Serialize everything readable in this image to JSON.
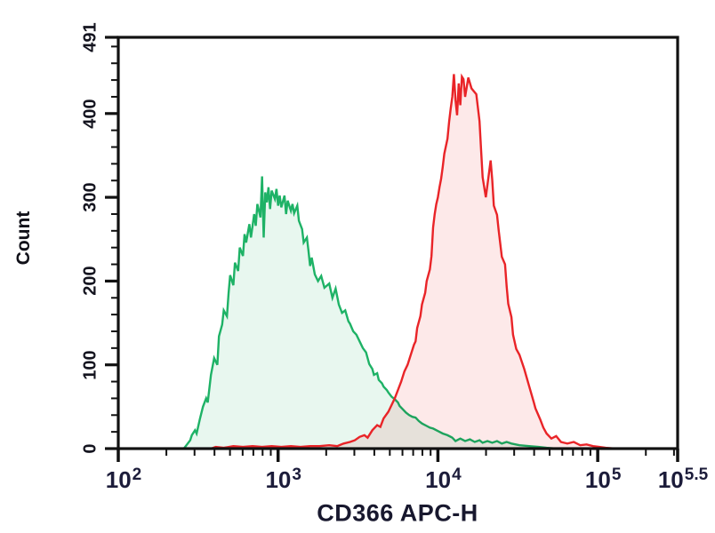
{
  "figure": {
    "kind": "flow-cytometry-histogram-overlay",
    "background": "#ffffff"
  },
  "chart_data": {
    "type": "area",
    "title": "",
    "xlabel": "CD366 APC-H",
    "ylabel": "Count",
    "x_scale": "log10",
    "xlim_log10": [
      2,
      5.5
    ],
    "ylim": [
      0,
      491
    ],
    "grid": false,
    "legend": "none",
    "axis_color": "#111111",
    "tick_label_color": "#1c1c3a",
    "y_major_ticks": [
      {
        "label": "0",
        "value": 0
      },
      {
        "label": "100",
        "value": 100
      },
      {
        "label": "200",
        "value": 200
      },
      {
        "label": "300",
        "value": 300
      },
      {
        "label": "400",
        "value": 400
      },
      {
        "label": "491",
        "value": 491
      }
    ],
    "y_minor_step": 20,
    "x_major_ticks": [
      {
        "base": "10",
        "exp": "2",
        "log10": 2
      },
      {
        "base": "10",
        "exp": "3",
        "log10": 3
      },
      {
        "base": "10",
        "exp": "4",
        "log10": 4
      },
      {
        "base": "10",
        "exp": "5",
        "log10": 5
      },
      {
        "base": "10",
        "exp": "5.5",
        "log10": 5.5
      }
    ],
    "x_minor_ticks_per_decade": [
      2,
      3,
      4,
      5,
      6,
      7,
      8,
      9
    ],
    "series": [
      {
        "name": "green-histogram",
        "stroke": "#1eb266",
        "fill": "rgba(30,178,102,0.10)",
        "peak": {
          "log10x": 2.9,
          "count": 325
        },
        "points": [
          [
            2.41,
            0
          ],
          [
            2.43,
            5
          ],
          [
            2.45,
            10
          ],
          [
            2.46,
            16
          ],
          [
            2.48,
            22
          ],
          [
            2.49,
            18
          ],
          [
            2.51,
            35
          ],
          [
            2.53,
            50
          ],
          [
            2.55,
            60
          ],
          [
            2.56,
            55
          ],
          [
            2.58,
            88
          ],
          [
            2.6,
            108
          ],
          [
            2.62,
            100
          ],
          [
            2.63,
            134
          ],
          [
            2.65,
            148
          ],
          [
            2.66,
            165
          ],
          [
            2.68,
            158
          ],
          [
            2.69,
            185
          ],
          [
            2.7,
            207
          ],
          [
            2.72,
            195
          ],
          [
            2.73,
            222
          ],
          [
            2.75,
            212
          ],
          [
            2.76,
            240
          ],
          [
            2.78,
            230
          ],
          [
            2.79,
            256
          ],
          [
            2.8,
            246
          ],
          [
            2.82,
            268
          ],
          [
            2.83,
            252
          ],
          [
            2.85,
            280
          ],
          [
            2.86,
            266
          ],
          [
            2.87,
            292
          ],
          [
            2.89,
            276
          ],
          [
            2.9,
            325
          ],
          [
            2.91,
            252
          ],
          [
            2.92,
            306
          ],
          [
            2.93,
            294
          ],
          [
            2.94,
            312
          ],
          [
            2.95,
            286
          ],
          [
            2.96,
            308
          ],
          [
            2.98,
            298
          ],
          [
            2.99,
            310
          ],
          [
            3.0,
            290
          ],
          [
            3.01,
            302
          ],
          [
            3.02,
            288
          ],
          [
            3.04,
            302
          ],
          [
            3.05,
            280
          ],
          [
            3.06,
            296
          ],
          [
            3.08,
            284
          ],
          [
            3.09,
            292
          ],
          [
            3.1,
            281
          ],
          [
            3.12,
            290
          ],
          [
            3.13,
            272
          ],
          [
            3.15,
            262
          ],
          [
            3.16,
            246
          ],
          [
            3.18,
            252
          ],
          [
            3.19,
            236
          ],
          [
            3.2,
            218
          ],
          [
            3.21,
            228
          ],
          [
            3.23,
            208
          ],
          [
            3.25,
            200
          ],
          [
            3.27,
            206
          ],
          [
            3.29,
            192
          ],
          [
            3.32,
            197
          ],
          [
            3.34,
            180
          ],
          [
            3.36,
            191
          ],
          [
            3.38,
            172
          ],
          [
            3.4,
            162
          ],
          [
            3.42,
            165
          ],
          [
            3.44,
            152
          ],
          [
            3.45,
            149
          ],
          [
            3.47,
            140
          ],
          [
            3.49,
            136
          ],
          [
            3.51,
            128
          ],
          [
            3.53,
            120
          ],
          [
            3.55,
            115
          ],
          [
            3.57,
            101
          ],
          [
            3.59,
            95
          ],
          [
            3.6,
            88
          ],
          [
            3.62,
            90
          ],
          [
            3.63,
            82
          ],
          [
            3.65,
            78
          ],
          [
            3.66,
            74
          ],
          [
            3.68,
            70
          ],
          [
            3.69,
            67
          ],
          [
            3.71,
            62
          ],
          [
            3.73,
            59
          ],
          [
            3.75,
            55
          ],
          [
            3.76,
            51
          ],
          [
            3.78,
            47
          ],
          [
            3.8,
            43
          ],
          [
            3.82,
            40
          ],
          [
            3.84,
            38
          ],
          [
            3.86,
            37
          ],
          [
            3.88,
            33
          ],
          [
            3.9,
            30
          ],
          [
            3.93,
            27
          ],
          [
            3.95,
            25
          ],
          [
            3.97,
            24
          ],
          [
            4.0,
            21
          ],
          [
            4.03,
            18
          ],
          [
            4.06,
            16
          ],
          [
            4.09,
            13
          ],
          [
            4.11,
            9
          ],
          [
            4.14,
            12
          ],
          [
            4.17,
            9
          ],
          [
            4.2,
            11
          ],
          [
            4.23,
            8
          ],
          [
            4.26,
            10
          ],
          [
            4.28,
            7
          ],
          [
            4.31,
            9
          ],
          [
            4.34,
            7
          ],
          [
            4.37,
            9
          ],
          [
            4.4,
            6
          ],
          [
            4.43,
            8
          ],
          [
            4.46,
            6
          ],
          [
            4.51,
            4
          ],
          [
            4.57,
            3
          ],
          [
            4.63,
            2
          ],
          [
            4.68,
            1
          ],
          [
            4.74,
            0
          ]
        ]
      },
      {
        "name": "red-histogram",
        "stroke": "#e92428",
        "fill": "rgba(233,36,40,0.10)",
        "peak": {
          "log10x": 4.1,
          "count": 447
        },
        "points": [
          [
            2.58,
            0
          ],
          [
            2.61,
            2
          ],
          [
            2.66,
            1
          ],
          [
            2.72,
            3
          ],
          [
            2.78,
            2
          ],
          [
            2.84,
            3
          ],
          [
            2.9,
            2
          ],
          [
            2.96,
            3
          ],
          [
            3.02,
            2
          ],
          [
            3.08,
            3
          ],
          [
            3.14,
            2
          ],
          [
            3.2,
            3
          ],
          [
            3.26,
            3
          ],
          [
            3.32,
            4
          ],
          [
            3.37,
            3
          ],
          [
            3.41,
            6
          ],
          [
            3.45,
            8
          ],
          [
            3.48,
            10
          ],
          [
            3.51,
            14
          ],
          [
            3.54,
            16
          ],
          [
            3.56,
            13
          ],
          [
            3.59,
            22
          ],
          [
            3.62,
            28
          ],
          [
            3.64,
            26
          ],
          [
            3.66,
            36
          ],
          [
            3.69,
            44
          ],
          [
            3.71,
            52
          ],
          [
            3.73,
            60
          ],
          [
            3.75,
            70
          ],
          [
            3.77,
            80
          ],
          [
            3.79,
            92
          ],
          [
            3.81,
            100
          ],
          [
            3.83,
            112
          ],
          [
            3.85,
            124
          ],
          [
            3.86,
            128
          ],
          [
            3.87,
            144
          ],
          [
            3.89,
            158
          ],
          [
            3.9,
            172
          ],
          [
            3.92,
            186
          ],
          [
            3.93,
            200
          ],
          [
            3.95,
            214
          ],
          [
            3.96,
            230
          ],
          [
            3.97,
            264
          ],
          [
            3.98,
            280
          ],
          [
            3.99,
            292
          ],
          [
            4.0,
            300
          ],
          [
            4.01,
            312
          ],
          [
            4.02,
            322
          ],
          [
            4.03,
            336
          ],
          [
            4.04,
            352
          ],
          [
            4.06,
            370
          ],
          [
            4.07,
            390
          ],
          [
            4.08,
            406
          ],
          [
            4.09,
            420
          ],
          [
            4.1,
            447
          ],
          [
            4.11,
            416
          ],
          [
            4.12,
            398
          ],
          [
            4.13,
            436
          ],
          [
            4.14,
            410
          ],
          [
            4.15,
            444
          ],
          [
            4.16,
            441
          ],
          [
            4.17,
            420
          ],
          [
            4.19,
            443
          ],
          [
            4.21,
            430
          ],
          [
            4.24,
            423
          ],
          [
            4.26,
            391
          ],
          [
            4.27,
            356
          ],
          [
            4.28,
            324
          ],
          [
            4.3,
            300
          ],
          [
            4.33,
            344
          ],
          [
            4.34,
            321
          ],
          [
            4.35,
            290
          ],
          [
            4.37,
            279
          ],
          [
            4.38,
            261
          ],
          [
            4.4,
            229
          ],
          [
            4.42,
            220
          ],
          [
            4.43,
            194
          ],
          [
            4.44,
            173
          ],
          [
            4.46,
            157
          ],
          [
            4.47,
            136
          ],
          [
            4.49,
            119
          ],
          [
            4.51,
            112
          ],
          [
            4.54,
            95
          ],
          [
            4.57,
            75
          ],
          [
            4.6,
            55
          ],
          [
            4.61,
            48
          ],
          [
            4.64,
            35
          ],
          [
            4.66,
            25
          ],
          [
            4.68,
            18
          ],
          [
            4.71,
            12
          ],
          [
            4.74,
            15
          ],
          [
            4.77,
            8
          ],
          [
            4.81,
            6
          ],
          [
            4.85,
            8
          ],
          [
            4.89,
            4
          ],
          [
            4.93,
            5
          ],
          [
            4.97,
            3
          ],
          [
            5.01,
            2
          ],
          [
            5.05,
            1
          ],
          [
            5.11,
            0
          ]
        ]
      }
    ]
  }
}
